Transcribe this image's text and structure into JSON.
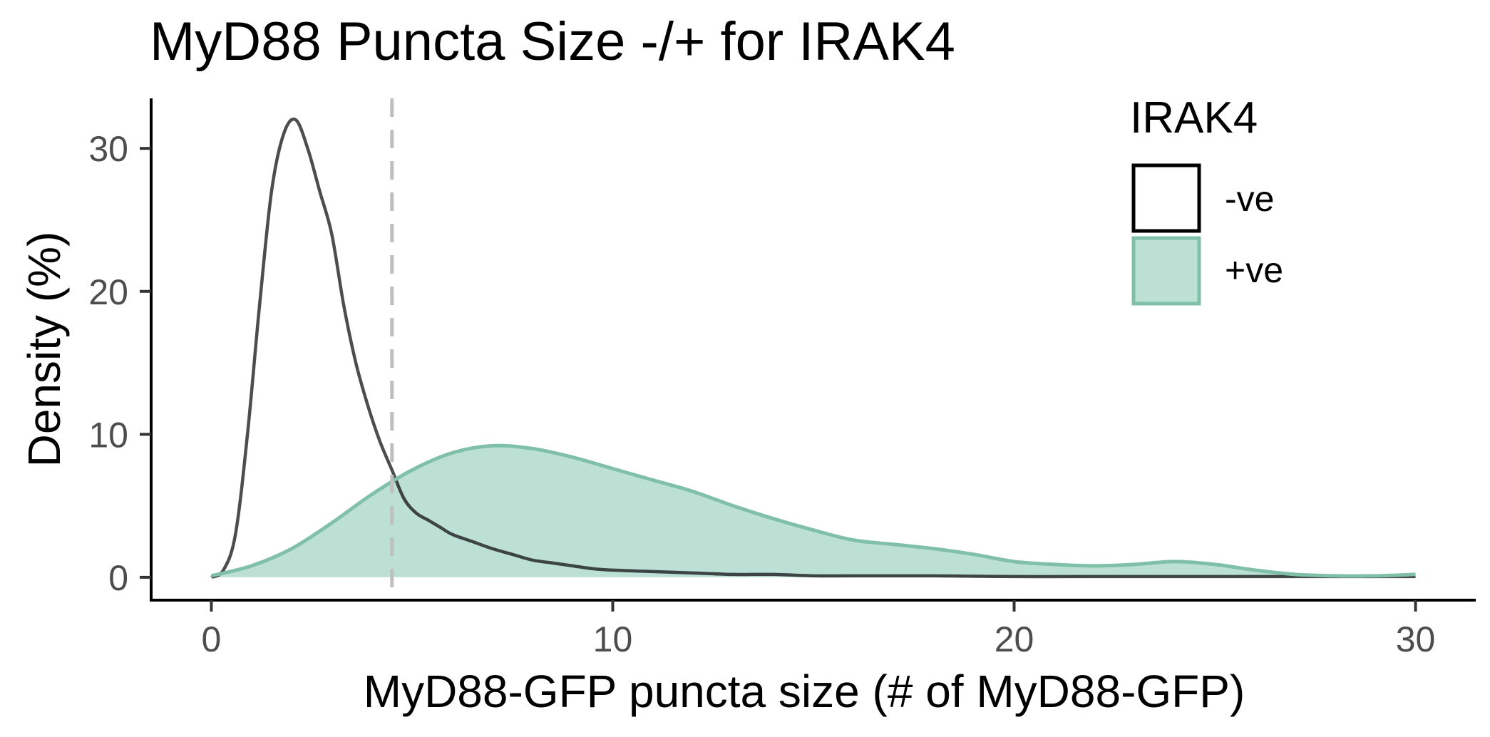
{
  "chart_data": {
    "type": "area",
    "title": "MyD88 Puncta Size -/+ for IRAK4",
    "xlabel": "MyD88-GFP puncta size (# of MyD88-GFP)",
    "ylabel": "Density (%)",
    "xlim": [
      -1.5,
      31.5
    ],
    "ylim": [
      -1.6,
      33.5
    ],
    "x_ticks": [
      0,
      10,
      20,
      30
    ],
    "y_ticks": [
      0,
      10,
      20,
      30
    ],
    "grid": false,
    "reference_line": {
      "x": 4.5,
      "style": "dashed",
      "color": "#bfbfbf"
    },
    "legend": {
      "title": "IRAK4",
      "position": "top-right",
      "entries": [
        {
          "label": "-ve",
          "fill": "none",
          "stroke": "#000000"
        },
        {
          "label": "+ve",
          "fill": "#bde0d5",
          "stroke": "#80c0a8"
        }
      ]
    },
    "series": [
      {
        "name": "-ve",
        "fill": "none",
        "stroke": "#111111",
        "x": [
          0,
          0.3,
          0.6,
          0.9,
          1.2,
          1.5,
          1.8,
          2.1,
          2.4,
          2.7,
          3.0,
          3.3,
          3.6,
          3.9,
          4.2,
          4.5,
          4.8,
          5.1,
          5.4,
          5.7,
          6.0,
          6.5,
          7.0,
          7.5,
          8.0,
          8.5,
          9.0,
          9.5,
          10.0,
          11.0,
          12.0,
          13.0,
          14.0,
          15.0,
          16.0,
          18.0,
          20.0,
          22.0,
          25.0,
          28.0,
          30.0
        ],
        "y": [
          0,
          0.5,
          3,
          10,
          19,
          27,
          31,
          32,
          30,
          27,
          24,
          19,
          15,
          12,
          9.5,
          7.5,
          5.5,
          4.5,
          4.0,
          3.5,
          3.0,
          2.5,
          2.0,
          1.6,
          1.2,
          1.0,
          0.8,
          0.6,
          0.5,
          0.4,
          0.3,
          0.2,
          0.2,
          0.1,
          0.1,
          0.1,
          0.05,
          0.05,
          0.05,
          0.05,
          0.05
        ]
      },
      {
        "name": "+ve",
        "fill": "#bde0d5",
        "stroke": "#80c0a8",
        "x": [
          0,
          1,
          2,
          3,
          4,
          5,
          6,
          7,
          8,
          9,
          10,
          11,
          12,
          13,
          14,
          15,
          16,
          17,
          18,
          19,
          20,
          21,
          22,
          23,
          24,
          25,
          26,
          27,
          28,
          29,
          30
        ],
        "y": [
          0.1,
          0.8,
          2,
          3.8,
          5.8,
          7.5,
          8.7,
          9.2,
          9.0,
          8.4,
          7.6,
          6.8,
          6.0,
          5.0,
          4.1,
          3.3,
          2.6,
          2.3,
          2.0,
          1.6,
          1.1,
          0.9,
          0.8,
          0.9,
          1.1,
          0.9,
          0.5,
          0.2,
          0.1,
          0.1,
          0.2
        ]
      }
    ]
  }
}
